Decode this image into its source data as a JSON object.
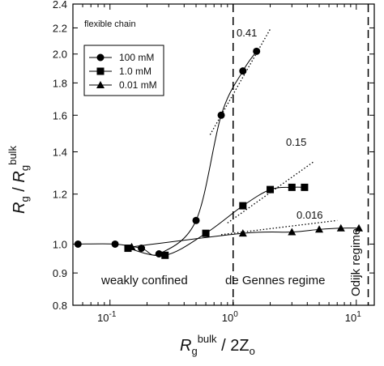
{
  "chart_data": {
    "type": "line",
    "x_scale": "log",
    "y_scale": "log",
    "xlim": [
      0.05,
      14
    ],
    "ylim": [
      0.8,
      2.4
    ],
    "grid": false,
    "legend_position": "top-left",
    "xlabel": {
      "main": "R",
      "sub": "g",
      "sup": "bulk",
      "rest": " / 2Z",
      "rest_sub": "o"
    },
    "ylabel": {
      "main1": "R",
      "sub1": "g",
      "mid": " / ",
      "main2": "R",
      "sub2": "g",
      "sup2": "bulk"
    },
    "y_ticks": [
      {
        "v": 0.8,
        "label": "0.8"
      },
      {
        "v": 0.9,
        "label": "0.9"
      },
      {
        "v": 1.0,
        "label": "1.0"
      },
      {
        "v": 1.2,
        "label": "1.2"
      },
      {
        "v": 1.4,
        "label": "1.4"
      },
      {
        "v": 1.6,
        "label": "1.6"
      },
      {
        "v": 1.8,
        "label": "1.8"
      },
      {
        "v": 2.0,
        "label": "2.0"
      },
      {
        "v": 2.2,
        "label": "2.2"
      },
      {
        "v": 2.4,
        "label": "2.4"
      }
    ],
    "x_major_ticks": [
      {
        "v": 0.1,
        "base": "10",
        "exp": "-1"
      },
      {
        "v": 1,
        "base": "10",
        "exp": "0"
      },
      {
        "v": 10,
        "base": "10",
        "exp": "1"
      }
    ],
    "series": [
      {
        "name": "100 mM",
        "marker": "circle",
        "x": [
          0.055,
          0.11,
          0.18,
          0.25,
          0.5,
          0.8,
          1.2,
          1.55
        ],
        "y": [
          1.0,
          1.0,
          0.985,
          0.965,
          1.09,
          1.6,
          1.88,
          2.02
        ]
      },
      {
        "name": "1.0 mM",
        "marker": "square",
        "x": [
          0.14,
          0.28,
          0.6,
          1.2,
          2.0,
          3.0,
          3.8
        ],
        "y": [
          0.985,
          0.96,
          1.04,
          1.15,
          1.22,
          1.23,
          1.23
        ]
      },
      {
        "name": "0.01 mM",
        "marker": "triangle",
        "x": [
          0.15,
          1.2,
          3.0,
          5.0,
          7.5,
          10.5
        ],
        "y": [
          0.99,
          1.04,
          1.045,
          1.055,
          1.06,
          1.06
        ]
      }
    ],
    "fits": [
      {
        "label": "0.41",
        "x": [
          0.65,
          2.0
        ],
        "y": [
          1.49,
          2.19
        ]
      },
      {
        "label": "0.15",
        "x": [
          0.9,
          4.5
        ],
        "y": [
          1.08,
          1.35
        ]
      },
      {
        "label": "0.016",
        "x": [
          0.8,
          7.0
        ],
        "y": [
          1.035,
          1.09
        ]
      }
    ],
    "regime_lines": [
      1,
      12.5
    ],
    "annotations": {
      "flexible": "flexible chain",
      "weakly": "weakly confined",
      "degennes": "de Gennes regime",
      "odijk": "Odijk regime"
    }
  }
}
